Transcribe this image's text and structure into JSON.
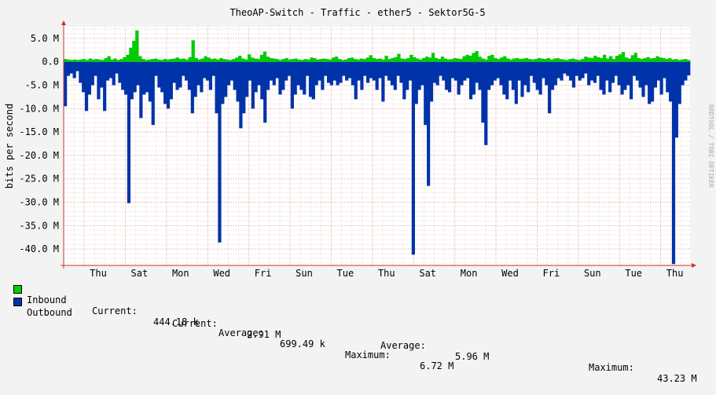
{
  "chart_data": {
    "type": "area",
    "title": "TheoAP-Switch - Traffic - ether5 - Sektor5G-5",
    "ylabel": "bits per second",
    "watermark": "RRDTOOL / TOBI OETIKER",
    "ylim": [
      -43.5,
      7.5
    ],
    "y_ticks": [
      {
        "value": 5,
        "label": "5.0 M"
      },
      {
        "value": 0,
        "label": "0.0"
      },
      {
        "value": -5,
        "label": "-5.0 M"
      },
      {
        "value": -10,
        "label": "-10.0 M"
      },
      {
        "value": -15,
        "label": "-15.0 M"
      },
      {
        "value": -20,
        "label": "-20.0 M"
      },
      {
        "value": -25,
        "label": "-25.0 M"
      },
      {
        "value": -30,
        "label": "-30.0 M"
      },
      {
        "value": -35,
        "label": "-35.0 M"
      },
      {
        "value": -40,
        "label": "-40.0 M"
      }
    ],
    "x_ticks": [
      "Thu",
      "Sat",
      "Mon",
      "Wed",
      "Fri",
      "Sun",
      "Tue",
      "Thu",
      "Sat",
      "Mon",
      "Wed",
      "Fri",
      "Sun",
      "Tue",
      "Thu"
    ],
    "x_labels": [
      "Thu",
      "Sat",
      "Mon",
      "Wed",
      "Fri",
      "Sun",
      "Tue",
      "Thu",
      "Sat",
      "Mon",
      "Wed",
      "Fri",
      "Sun",
      "Tue",
      "Thu"
    ],
    "grid": true,
    "colors": {
      "inbound": "#00cc00",
      "outbound": "#0033aa",
      "plot_bg": "#ffffff",
      "page_bg": "#f3f3f3",
      "grid": "#ff9999",
      "axis": "#cc3333"
    },
    "inbound": [
      0.6,
      0.5,
      0.4,
      0.5,
      0.4,
      0.5,
      0.6,
      0.4,
      0.7,
      0.5,
      0.6,
      0.5,
      0.4,
      0.8,
      1.2,
      0.5,
      0.7,
      0.4,
      0.6,
      1.0,
      1.5,
      3.0,
      4.5,
      6.7,
      1.2,
      0.6,
      0.4,
      0.5,
      0.6,
      0.7,
      0.5,
      0.4,
      0.6,
      0.5,
      0.6,
      0.7,
      0.9,
      0.6,
      0.7,
      0.5,
      1.0,
      4.6,
      0.8,
      0.5,
      0.7,
      1.2,
      0.9,
      0.6,
      0.7,
      0.5,
      0.8,
      0.6,
      0.5,
      0.4,
      0.6,
      0.9,
      1.3,
      0.7,
      0.5,
      1.6,
      0.9,
      0.7,
      0.6,
      1.5,
      2.2,
      1.1,
      0.8,
      0.7,
      0.6,
      0.4,
      0.6,
      0.8,
      0.5,
      0.6,
      0.7,
      0.5,
      0.4,
      0.6,
      0.5,
      0.9,
      0.8,
      0.5,
      0.6,
      0.7,
      0.6,
      0.5,
      0.9,
      1.1,
      0.6,
      0.4,
      0.5,
      0.8,
      0.9,
      0.6,
      0.5,
      0.7,
      0.6,
      0.9,
      1.4,
      0.8,
      0.6,
      0.7,
      0.5,
      1.3,
      0.6,
      0.8,
      1.0,
      1.7,
      0.7,
      0.6,
      0.8,
      1.5,
      1.0,
      0.7,
      0.5,
      0.8,
      1.1,
      0.9,
      1.9,
      0.8,
      0.6,
      1.1,
      0.7,
      0.5,
      0.6,
      0.8,
      0.7,
      0.6,
      1.2,
      1.5,
      1.3,
      1.9,
      2.3,
      1.1,
      0.7,
      0.5,
      1.3,
      1.5,
      0.8,
      0.6,
      0.9,
      1.2,
      0.7,
      0.5,
      0.7,
      0.8,
      0.6,
      0.7,
      0.8,
      0.6,
      0.5,
      0.6,
      0.8,
      0.7,
      0.6,
      0.8,
      0.5,
      0.7,
      0.8,
      0.6,
      0.5,
      0.4,
      0.6,
      0.7,
      0.5,
      0.4,
      0.6,
      1.1,
      0.9,
      0.8,
      1.3,
      1.0,
      0.8,
      1.5,
      0.7,
      1.2,
      0.6,
      1.3,
      1.6,
      2.1,
      0.9,
      0.7,
      1.4,
      1.9,
      0.8,
      0.6,
      0.8,
      1.0,
      0.7,
      0.8,
      1.2,
      0.9,
      0.8,
      0.6,
      0.8,
      0.5,
      0.6,
      0.4,
      0.5,
      0.6,
      0.4
    ],
    "outbound": [
      -9.5,
      -3.0,
      -2.5,
      -3.5,
      -2.0,
      -4.5,
      -6.5,
      -10.5,
      -7.0,
      -5.0,
      -3.0,
      -8.0,
      -5.5,
      -10.5,
      -4.0,
      -3.5,
      -5.0,
      -2.5,
      -4.5,
      -6.0,
      -7.0,
      -30.2,
      -8.0,
      -6.5,
      -5.0,
      -12.0,
      -7.0,
      -6.5,
      -8.5,
      -13.5,
      -3.0,
      -5.5,
      -6.5,
      -9.0,
      -10.0,
      -8.0,
      -4.5,
      -6.0,
      -5.5,
      -3.0,
      -4.0,
      -6.0,
      -11.0,
      -7.5,
      -5.0,
      -6.5,
      -3.5,
      -4.0,
      -6.0,
      -3.0,
      -11.0,
      -38.6,
      -9.0,
      -7.5,
      -5.0,
      -4.0,
      -6.0,
      -8.5,
      -14.2,
      -11.0,
      -7.5,
      -4.0,
      -10.0,
      -6.5,
      -5.0,
      -8.0,
      -13.0,
      -6.0,
      -4.0,
      -5.0,
      -3.5,
      -7.0,
      -6.0,
      -4.0,
      -3.0,
      -10.0,
      -7.0,
      -5.0,
      -6.0,
      -7.0,
      -3.0,
      -7.5,
      -8.0,
      -5.0,
      -4.0,
      -6.0,
      -3.0,
      -4.5,
      -5.0,
      -4.0,
      -5.0,
      -4.5,
      -3.0,
      -4.0,
      -3.5,
      -5.0,
      -8.0,
      -4.0,
      -6.0,
      -3.0,
      -4.5,
      -3.5,
      -4.0,
      -6.0,
      -3.5,
      -8.5,
      -3.0,
      -4.0,
      -5.0,
      -6.0,
      -3.0,
      -4.5,
      -8.0,
      -6.0,
      -4.0,
      -41.2,
      -9.0,
      -6.0,
      -5.0,
      -13.5,
      -26.5,
      -8.5,
      -4.5,
      -5.0,
      -3.0,
      -4.0,
      -6.0,
      -6.5,
      -3.5,
      -4.0,
      -7.0,
      -5.0,
      -4.0,
      -3.5,
      -8.0,
      -7.0,
      -4.5,
      -6.0,
      -13.0,
      -17.8,
      -6.0,
      -5.0,
      -4.0,
      -3.5,
      -5.0,
      -7.0,
      -8.0,
      -4.0,
      -6.0,
      -9.0,
      -4.0,
      -7.5,
      -5.0,
      -6.5,
      -3.0,
      -4.5,
      -6.0,
      -7.0,
      -3.5,
      -5.0,
      -11.0,
      -6.0,
      -5.0,
      -3.5,
      -4.0,
      -2.5,
      -3.0,
      -4.0,
      -5.5,
      -3.0,
      -4.0,
      -3.5,
      -2.5,
      -5.0,
      -4.0,
      -4.5,
      -3.0,
      -6.0,
      -7.0,
      -4.0,
      -6.5,
      -4.5,
      -3.0,
      -5.0,
      -7.0,
      -6.0,
      -5.0,
      -8.0,
      -3.0,
      -4.0,
      -5.5,
      -7.5,
      -5.0,
      -9.0,
      -8.5,
      -5.5,
      -4.0,
      -7.0,
      -3.5,
      -6.5,
      -8.5,
      -43.2,
      -16.2,
      -9.0,
      -5.0,
      -4.0,
      -2.9
    ]
  },
  "legend": {
    "inbound": {
      "name": "Inbound",
      "current_label": "Current:",
      "current": "444.18 k",
      "average_label": "Average:",
      "average": "699.49 k",
      "maximum_label": "Maximum:",
      "maximum": "6.72 M"
    },
    "outbound": {
      "name": "Outbound",
      "current_label": "Current:",
      "current": "2.91 M",
      "average_label": "Average:",
      "average": "5.96 M",
      "maximum_label": "Maximum:",
      "maximum": "43.23 M"
    }
  }
}
